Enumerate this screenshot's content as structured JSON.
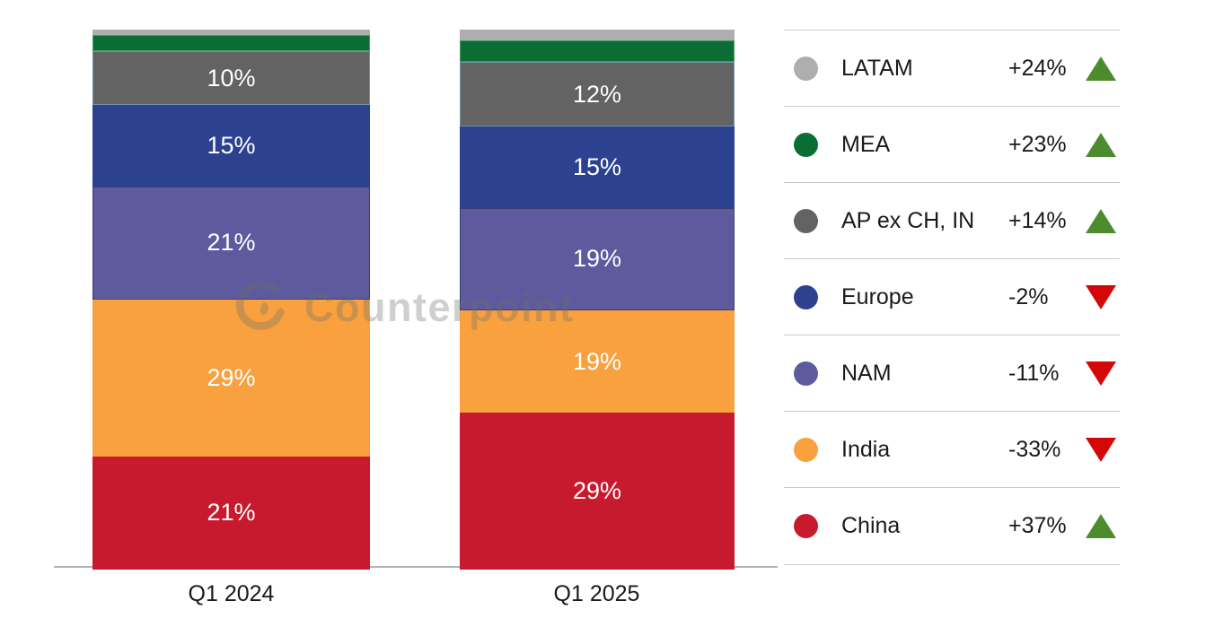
{
  "watermark": {
    "text": "Counterpoint"
  },
  "colors": {
    "trend_up": "#4d8c2e",
    "trend_down": "#d40808",
    "separator": "#c8c8c8",
    "baseline": "#b3b3b3",
    "bar_label": "#ffffff",
    "text": "#1a1a1a",
    "background": "#ffffff"
  },
  "chart_data": {
    "type": "bar",
    "stacked": true,
    "unit": "%",
    "grid": false,
    "ylim": [
      0,
      100
    ],
    "legend_position": "right",
    "categories": [
      "Q1 2024",
      "Q1 2025"
    ],
    "series": [
      {
        "name": "China",
        "color": "#c81a2e",
        "values": [
          21,
          29
        ],
        "labels": [
          "21%",
          "29%"
        ],
        "yoy_change": "+37%",
        "trend": "up"
      },
      {
        "name": "India",
        "color": "#f8a13e",
        "values": [
          29,
          19
        ],
        "labels": [
          "29%",
          "19%"
        ],
        "yoy_change": "-33%",
        "trend": "down"
      },
      {
        "name": "NAM",
        "color": "#5d5a9e",
        "values": [
          21,
          19
        ],
        "labels": [
          "21%",
          "19%"
        ],
        "yoy_change": "-11%",
        "trend": "down"
      },
      {
        "name": "Europe",
        "color": "#2d4191",
        "values": [
          15,
          15
        ],
        "labels": [
          "15%",
          "15%"
        ],
        "yoy_change": "-2%",
        "trend": "down"
      },
      {
        "name": "AP ex CH, IN",
        "color": "#636363",
        "values": [
          10,
          12
        ],
        "labels": [
          "10%",
          "12%"
        ],
        "yoy_change": "+14%",
        "trend": "up"
      },
      {
        "name": "MEA",
        "color": "#0a6e34",
        "values": [
          3,
          4
        ],
        "labels": [
          null,
          null
        ],
        "yoy_change": "+23%",
        "trend": "up"
      },
      {
        "name": "LATAM",
        "color": "#aeaeae",
        "values": [
          1,
          2
        ],
        "labels": [
          null,
          null
        ],
        "yoy_change": "+24%",
        "trend": "up"
      }
    ],
    "stack_order_top_to_bottom": [
      "LATAM",
      "MEA",
      "AP ex CH, IN",
      "Europe",
      "NAM",
      "India",
      "China"
    ],
    "legend_order": [
      "LATAM",
      "MEA",
      "AP ex CH, IN",
      "Europe",
      "NAM",
      "India",
      "China"
    ]
  }
}
